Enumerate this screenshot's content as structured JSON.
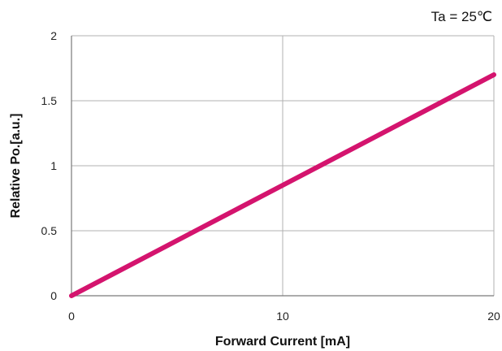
{
  "chart_data": {
    "type": "line",
    "title": "",
    "annotation": "Ta = 25℃",
    "xlabel": "Forward Current [mA]",
    "ylabel": "Relative Po.[a.u.]",
    "xlim": [
      0,
      20
    ],
    "ylim": [
      0,
      2
    ],
    "x_ticks": [
      0,
      10,
      20
    ],
    "y_ticks": [
      0,
      0.5,
      1,
      1.5,
      2
    ],
    "x_tick_labels": [
      "0",
      "10",
      "20"
    ],
    "y_tick_labels": [
      "0",
      "0.5",
      "1",
      "1.5",
      "2"
    ],
    "grid": true,
    "legend": "none",
    "colors": {
      "series": "#d4146e",
      "grid": "#b0b0b0",
      "axis": "#7a7a7a"
    },
    "series": [
      {
        "x": [
          0,
          2,
          4,
          6,
          8,
          10,
          12,
          14,
          16,
          18,
          20
        ],
        "values": [
          0,
          0.17,
          0.34,
          0.51,
          0.68,
          0.85,
          1.02,
          1.19,
          1.36,
          1.53,
          1.7
        ]
      }
    ]
  }
}
